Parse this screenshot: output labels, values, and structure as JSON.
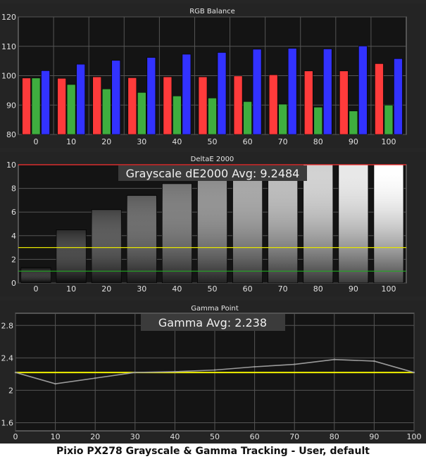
{
  "caption": "Pixio PX278 Grayscale & Gamma Tracking - User, default",
  "chart_data": [
    {
      "type": "bar",
      "title": "RGB Balance",
      "categories": [
        "0",
        "10",
        "20",
        "30",
        "40",
        "50",
        "60",
        "70",
        "80",
        "90",
        "100"
      ],
      "ylim": [
        80,
        120
      ],
      "yticks": [
        80,
        90,
        100,
        110,
        120
      ],
      "grid": true,
      "series": [
        {
          "color": "#ff3b3b",
          "values": [
            99.2,
            99.1,
            99.6,
            99.3,
            99.6,
            99.6,
            99.9,
            100.3,
            101.6,
            101.6,
            104.1
          ]
        },
        {
          "color": "#3fae3f",
          "values": [
            99.2,
            97.0,
            95.5,
            94.3,
            93.1,
            92.4,
            91.2,
            90.3,
            89.3,
            88.0,
            90.0
          ]
        },
        {
          "color": "#3232ff",
          "values": [
            101.7,
            103.9,
            105.2,
            106.2,
            107.3,
            107.9,
            109.0,
            109.3,
            109.1,
            110.1,
            105.8
          ]
        }
      ]
    },
    {
      "type": "bar",
      "title": "DeltaE 2000",
      "annotation": "Grayscale dE2000 Avg: 9.2484",
      "categories": [
        "0",
        "10",
        "20",
        "30",
        "40",
        "50",
        "60",
        "70",
        "80",
        "90",
        "100"
      ],
      "ylim": [
        0,
        10
      ],
      "yticks": [
        0,
        2,
        4,
        6,
        8,
        10
      ],
      "values": [
        1.3,
        4.5,
        6.2,
        7.4,
        8.4,
        8.9,
        9.6,
        9.8,
        10.0,
        10.0,
        10.0
      ],
      "reference_lines": [
        {
          "value": 10,
          "color": "#ff3030"
        },
        {
          "value": 3,
          "color": "#e6e600"
        },
        {
          "value": 1,
          "color": "#22aa22"
        }
      ],
      "grid": true
    },
    {
      "type": "line",
      "title": "Gamma Point",
      "annotation": "Gamma Avg: 2.238",
      "x": [
        0,
        10,
        20,
        30,
        40,
        50,
        60,
        70,
        80,
        90,
        100
      ],
      "xticks": [
        0,
        10,
        20,
        30,
        40,
        50,
        60,
        70,
        80,
        90,
        100
      ],
      "y": [
        2.22,
        2.08,
        2.15,
        2.22,
        2.23,
        2.25,
        2.29,
        2.32,
        2.38,
        2.36,
        2.22
      ],
      "ylim": [
        1.5,
        2.95
      ],
      "yticks": [
        1.6,
        2.0,
        2.4,
        2.8
      ],
      "ytick_labels": [
        "1.6",
        "2",
        "2.4",
        "2.8"
      ],
      "target_line": {
        "value": 2.22,
        "color": "#f0f000"
      },
      "line_color": "#9a9a9a",
      "grid": true
    }
  ]
}
